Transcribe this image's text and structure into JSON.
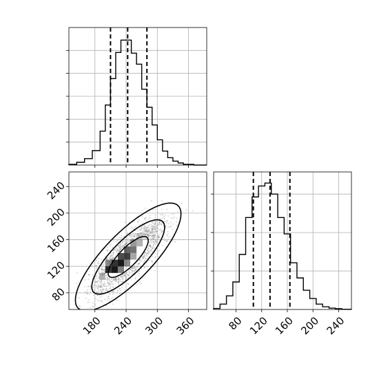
{
  "chart_data": [
    {
      "type": "histogram",
      "panel": "top-left",
      "xlim": [
        130,
        395
      ],
      "ylim": [
        0,
        0.06
      ],
      "x_ticks": [
        180,
        240,
        300,
        360
      ],
      "y_ticks": [
        0.01,
        0.02,
        0.03,
        0.04,
        0.05
      ],
      "tick_labels_shown": false,
      "grid": true,
      "bin_edges": [
        130,
        145,
        160,
        175,
        190,
        200,
        210,
        220,
        230,
        240,
        250,
        260,
        270,
        280,
        290,
        300,
        310,
        320,
        330,
        340,
        350,
        370,
        395
      ],
      "values": [
        0.0003,
        0.0012,
        0.0028,
        0.0063,
        0.0148,
        0.0262,
        0.0377,
        0.0491,
        0.0545,
        0.0545,
        0.0488,
        0.044,
        0.0331,
        0.0252,
        0.0175,
        0.011,
        0.0061,
        0.0032,
        0.0017,
        0.0009,
        0.0003,
        0.0
      ],
      "quantile_lines": [
        210,
        243,
        280
      ]
    },
    {
      "type": "scatter-contour",
      "panel": "bottom-left",
      "xlim": [
        130,
        395
      ],
      "ylim": [
        55,
        262
      ],
      "x_ticks": [
        180,
        240,
        300,
        360
      ],
      "x_tick_labels": [
        "180",
        "240",
        "300",
        "360"
      ],
      "y_ticks": [
        80,
        120,
        160,
        200,
        240
      ],
      "y_tick_labels": [
        "80",
        "120",
        "160",
        "200",
        "240"
      ],
      "grid": true,
      "correlation": 0.8,
      "mean": [
        244,
        134
      ],
      "sd": [
        35,
        28
      ]
    },
    {
      "type": "histogram",
      "panel": "bottom-right",
      "xlim": [
        45,
        260
      ],
      "ylim": [
        0,
        0.0715
      ],
      "x_ticks": [
        80,
        120,
        160,
        200,
        240
      ],
      "x_tick_labels": [
        "80",
        "120",
        "160",
        "200",
        "240"
      ],
      "y_ticks": [
        0.02,
        0.04,
        0.06
      ],
      "tick_labels_shown": false,
      "grid": true,
      "bin_edges": [
        45,
        55,
        65,
        75,
        85,
        95,
        105,
        115,
        125,
        135,
        145,
        155,
        165,
        175,
        185,
        195,
        205,
        215,
        225,
        235,
        245,
        260
      ],
      "values": [
        0.0005,
        0.0028,
        0.0071,
        0.0143,
        0.0286,
        0.0478,
        0.0585,
        0.0642,
        0.0657,
        0.06,
        0.0478,
        0.0393,
        0.0243,
        0.0164,
        0.01,
        0.0057,
        0.0028,
        0.0014,
        0.0007,
        0.0004,
        0.0001
      ],
      "quantile_lines": [
        107,
        133,
        164
      ]
    }
  ]
}
